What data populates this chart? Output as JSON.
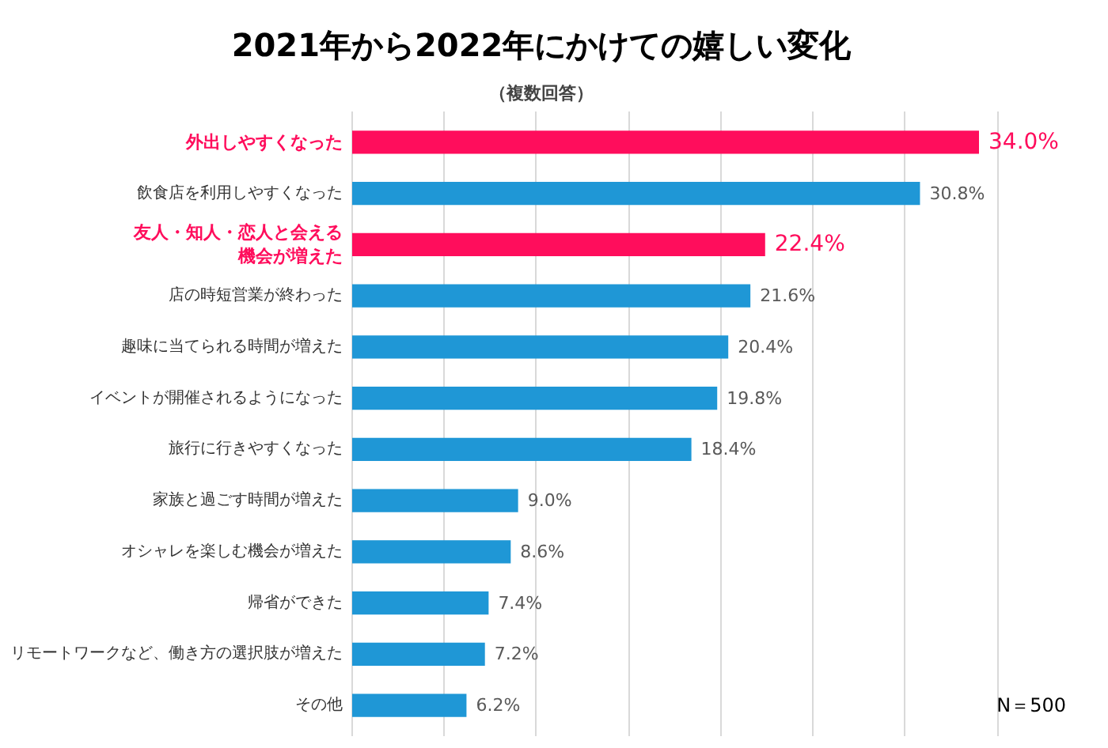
{
  "chart_data": {
    "type": "bar",
    "orientation": "horizontal",
    "title": "2021年から2022年にかけての嬉しい変化",
    "subtitle": "（複数回答）",
    "categories": [
      "外出しやすくなった",
      "飲食店を利用しやすくなった",
      "友人・知人・恋人と会える機会が増えた",
      "店の時短営業が終わった",
      "趣味に当てられる時間が増えた",
      "イベントが開催されるようになった",
      "旅行に行きやすくなった",
      "家族と過ごす時間が増えた",
      "オシャレを楽しむ機会が増えた",
      "帰省ができた",
      "リモートワークなど、働き方の選択肢が増えた",
      "その他"
    ],
    "values": [
      34.0,
      30.8,
      22.4,
      21.6,
      20.4,
      19.8,
      18.4,
      9.0,
      8.6,
      7.4,
      7.2,
      6.2
    ],
    "value_labels": [
      "34.0%",
      "30.8%",
      "22.4%",
      "21.6%",
      "20.4%",
      "19.8%",
      "18.4%",
      "9.0%",
      "8.6%",
      "7.4%",
      "7.2%",
      "6.2%"
    ],
    "colors": [
      "#ff0d5c",
      "#1f97d6",
      "#ff0d5c",
      "#1f97d6",
      "#1f97d6",
      "#1f97d6",
      "#1f97d6",
      "#1f97d6",
      "#1f97d6",
      "#1f97d6",
      "#1f97d6",
      "#1f97d6"
    ],
    "grid": "x",
    "annotations": [
      "N＝500"
    ]
  }
}
